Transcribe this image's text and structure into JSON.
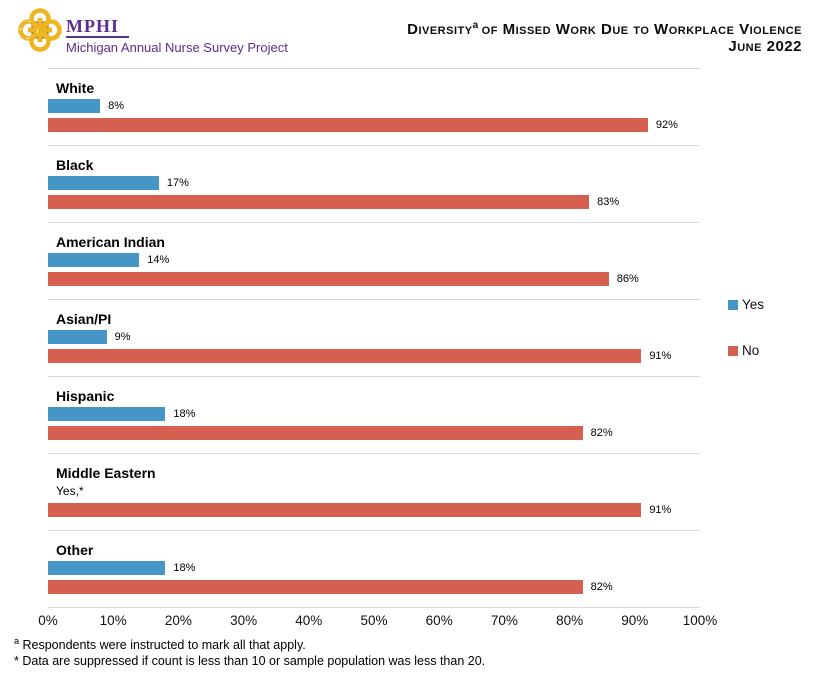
{
  "header": {
    "logo": {
      "acronym": "MPHI",
      "subtitle": "Michigan Annual Nurse Survey Project"
    },
    "title": {
      "main": "Diversity",
      "superscript": "a",
      "rest": "of Missed Work Due to Workplace Violence",
      "date": "June 2022"
    }
  },
  "chart_data": {
    "type": "bar",
    "orientation": "horizontal",
    "title": "Diversity of Missed Work Due to Workplace Violence",
    "subtitle": "June 2022",
    "categories": [
      "White",
      "Black",
      "American Indian",
      "Asian/PI",
      "Hispanic",
      "Middle Eastern",
      "Other"
    ],
    "series": [
      {
        "name": "Yes",
        "color": "#4596C6",
        "values": [
          8,
          17,
          14,
          9,
          18,
          null,
          18
        ],
        "labels": [
          "8%",
          "17%",
          "14%",
          "9%",
          "18%",
          "Yes,*",
          "18%"
        ]
      },
      {
        "name": "No",
        "color": "#D6604F",
        "values": [
          92,
          83,
          86,
          91,
          82,
          91,
          82
        ],
        "labels": [
          "92%",
          "83%",
          "86%",
          "91%",
          "82%",
          "91%",
          "82%"
        ]
      }
    ],
    "xlim": [
      0,
      100
    ],
    "x_ticks": [
      "0%",
      "10%",
      "20%",
      "30%",
      "40%",
      "50%",
      "60%",
      "70%",
      "80%",
      "90%",
      "100%"
    ],
    "legend_position": "right",
    "grid": false,
    "suppression_note": "Yes,*"
  },
  "legend": {
    "items": [
      {
        "label": "Yes",
        "color": "#4596C6"
      },
      {
        "label": "No",
        "color": "#D6604F"
      }
    ]
  },
  "footnotes": [
    {
      "marker": "a",
      "superscript": true,
      "text": "Respondents were instructed to mark all that apply."
    },
    {
      "marker": "*",
      "superscript": false,
      "text": "Data are suppressed if count is less than 10 or sample population was less than 20."
    }
  ],
  "colors": {
    "yes": "#4596C6",
    "no": "#D6604F",
    "brand_purple": "#5B2E90",
    "brand_gold": "#EDB51E",
    "separator": "#D9D9D9"
  }
}
